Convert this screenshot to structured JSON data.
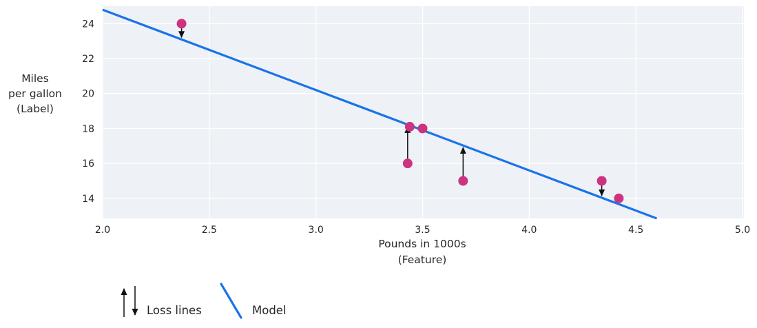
{
  "colors": {
    "model_line": "#1a73e8",
    "data_point": "#cc3380",
    "loss_arrow": "#111111",
    "plot_background": "#eef1f6",
    "gridline": "#ffffff",
    "text": "#262626",
    "page_background": "#ffffff"
  },
  "chart_data": {
    "type": "scatter",
    "title": "",
    "xlabel_lines": [
      "Pounds in 1000s",
      "(Feature)"
    ],
    "ylabel_lines": [
      "Miles",
      "per gallon",
      "(Label)"
    ],
    "xlim": [
      2.0,
      5.0
    ],
    "ylim": [
      12.85,
      25.0
    ],
    "x_ticks": [
      "2.0",
      "2.5",
      "3.0",
      "3.5",
      "4.0",
      "4.5",
      "5.0"
    ],
    "y_ticks": [
      14,
      16,
      18,
      20,
      22,
      24
    ],
    "grid": true,
    "legend_position": "bottom-left",
    "points": [
      {
        "x": 2.37,
        "y": 24
      },
      {
        "x": 3.43,
        "y": 16
      },
      {
        "x": 3.44,
        "y": 18.1
      },
      {
        "x": 3.5,
        "y": 18
      },
      {
        "x": 3.69,
        "y": 15
      },
      {
        "x": 4.34,
        "y": 15
      },
      {
        "x": 4.42,
        "y": 14
      }
    ],
    "model_line": {
      "slope": -4.6,
      "intercept": 34,
      "x_start": 2.0
    },
    "loss_lines": [
      {
        "x": 2.37,
        "y": 24,
        "direction": "down"
      },
      {
        "x": 3.43,
        "y": 16,
        "direction": "up"
      },
      {
        "x": 3.69,
        "y": 15,
        "direction": "up"
      },
      {
        "x": 4.34,
        "y": 15,
        "direction": "down"
      },
      {
        "x": 4.42,
        "y": 14,
        "direction": "down"
      }
    ],
    "legend": [
      {
        "symbol": "loss-arrows",
        "label": "Loss lines"
      },
      {
        "symbol": "model-line",
        "label": "Model"
      }
    ]
  }
}
